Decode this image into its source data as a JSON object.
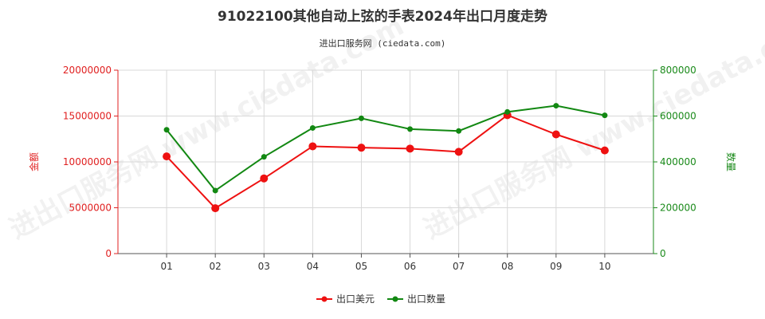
{
  "title": "91022100其他自动上弦的手表2024年出口月度走势",
  "subtitle": "进出口服务网 (ciedata.com)",
  "watermark": "进出口服务网 www.ciedata.com",
  "colors": {
    "value_series": "#ee1111",
    "quantity_series": "#128812",
    "left_axis": "#e02020",
    "right_axis": "#1a8a1a",
    "grid": "#d8d8d8"
  },
  "chart_data": {
    "type": "line",
    "title": "91022100其他自动上弦的手表2024年出口月度走势",
    "subtitle": "进出口服务网 (ciedata.com)",
    "categories": [
      "01",
      "02",
      "03",
      "04",
      "05",
      "06",
      "07",
      "08",
      "09",
      "10"
    ],
    "y_left": {
      "label": "金额",
      "range": [
        0,
        20000000
      ],
      "ticks": [
        "0",
        "5000000",
        "10000000",
        "15000000",
        "20000000"
      ]
    },
    "y_right": {
      "label": "数量",
      "range": [
        0,
        800000
      ],
      "ticks": [
        "0",
        "200000",
        "400000",
        "600000",
        "800000"
      ]
    },
    "series": [
      {
        "name": "出口美元",
        "axis": "left",
        "color": "#ee1111",
        "values": [
          10600000,
          4950000,
          8200000,
          11700000,
          11550000,
          11450000,
          11100000,
          15100000,
          13000000,
          11250000
        ]
      },
      {
        "name": "出口数量",
        "axis": "right",
        "color": "#128812",
        "values": [
          540000,
          275000,
          422000,
          548000,
          590000,
          543000,
          535000,
          618000,
          645000,
          603000
        ]
      }
    ],
    "grid": true,
    "legend_position": "bottom-center"
  }
}
